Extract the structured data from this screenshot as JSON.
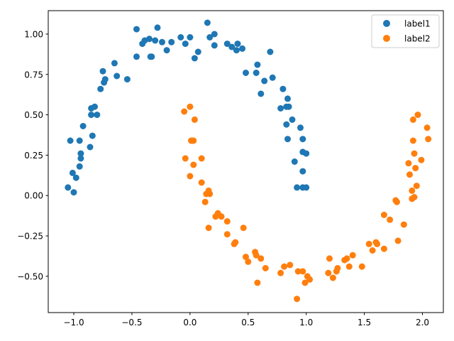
{
  "chart_data": {
    "type": "scatter",
    "title": "",
    "xlabel": "",
    "ylabel": "",
    "xlim": [
      -1.22,
      2.18
    ],
    "ylim": [
      -0.725,
      1.145
    ],
    "x_ticks": [
      "−1.0",
      "−0.5",
      "0.0",
      "0.5",
      "1.0",
      "1.5",
      "2.0"
    ],
    "x_tick_values": [
      -1.0,
      -0.5,
      0.0,
      0.5,
      1.0,
      1.5,
      2.0
    ],
    "y_ticks": [
      "−0.50",
      "−0.25",
      "0.00",
      "0.25",
      "0.50",
      "0.75",
      "1.00"
    ],
    "y_tick_values": [
      -0.5,
      -0.25,
      0.0,
      0.25,
      0.5,
      0.75,
      1.0
    ],
    "legend_position": "top-right",
    "grid": false,
    "series": [
      {
        "name": "label1",
        "color": "#1f77b4",
        "points": [
          [
            -1.05,
            0.05
          ],
          [
            -1.0,
            0.02
          ],
          [
            -1.01,
            0.14
          ],
          [
            -0.98,
            0.11
          ],
          [
            -0.95,
            0.18
          ],
          [
            -0.94,
            0.23
          ],
          [
            -0.94,
            0.26
          ],
          [
            -1.03,
            0.34
          ],
          [
            -0.95,
            0.34
          ],
          [
            -0.92,
            0.43
          ],
          [
            -0.86,
            0.3
          ],
          [
            -0.84,
            0.37
          ],
          [
            -0.85,
            0.5
          ],
          [
            -0.85,
            0.54
          ],
          [
            -0.82,
            0.55
          ],
          [
            -0.8,
            0.5
          ],
          [
            -0.77,
            0.66
          ],
          [
            -0.75,
            0.77
          ],
          [
            -0.74,
            0.7
          ],
          [
            -0.73,
            0.72
          ],
          [
            -0.63,
            0.74
          ],
          [
            -0.65,
            0.82
          ],
          [
            -0.54,
            0.72
          ],
          [
            -0.46,
            0.86
          ],
          [
            -0.46,
            1.03
          ],
          [
            -0.41,
            0.94
          ],
          [
            -0.39,
            0.96
          ],
          [
            -0.35,
            0.97
          ],
          [
            -0.34,
            0.86
          ],
          [
            -0.33,
            0.86
          ],
          [
            -0.3,
            0.96
          ],
          [
            -0.28,
            1.04
          ],
          [
            -0.24,
            0.95
          ],
          [
            -0.2,
            0.9
          ],
          [
            -0.16,
            0.95
          ],
          [
            -0.08,
            0.98
          ],
          [
            -0.04,
            0.94
          ],
          [
            0.0,
            0.98
          ],
          [
            0.04,
            0.85
          ],
          [
            0.07,
            0.89
          ],
          [
            0.15,
            1.07
          ],
          [
            0.17,
            0.98
          ],
          [
            0.21,
            1.0
          ],
          [
            0.21,
            0.93
          ],
          [
            0.32,
            0.94
          ],
          [
            0.36,
            0.92
          ],
          [
            0.4,
            0.9
          ],
          [
            0.41,
            0.94
          ],
          [
            0.45,
            0.91
          ],
          [
            0.48,
            0.76
          ],
          [
            0.57,
            0.76
          ],
          [
            0.58,
            0.81
          ],
          [
            0.61,
            0.63
          ],
          [
            0.64,
            0.71
          ],
          [
            0.69,
            0.89
          ],
          [
            0.71,
            0.73
          ],
          [
            0.78,
            0.54
          ],
          [
            0.8,
            0.66
          ],
          [
            0.83,
            0.55
          ],
          [
            0.83,
            0.44
          ],
          [
            0.84,
            0.6
          ],
          [
            0.84,
            0.35
          ],
          [
            0.85,
            0.55
          ],
          [
            0.88,
            0.47
          ],
          [
            0.9,
            0.21
          ],
          [
            0.92,
            0.05
          ],
          [
            0.95,
            0.42
          ],
          [
            0.97,
            0.35
          ],
          [
            0.97,
            0.27
          ],
          [
            0.97,
            0.05
          ],
          [
            0.97,
            0.15
          ],
          [
            1.0,
            0.26
          ],
          [
            1.0,
            0.05
          ]
        ]
      },
      {
        "name": "label2",
        "color": "#ff7f0e",
        "points": [
          [
            -0.05,
            0.52
          ],
          [
            0.0,
            0.55
          ],
          [
            0.04,
            0.47
          ],
          [
            0.01,
            0.34
          ],
          [
            0.02,
            0.34
          ],
          [
            0.03,
            0.34
          ],
          [
            -0.04,
            0.23
          ],
          [
            0.03,
            0.19
          ],
          [
            0.1,
            0.23
          ],
          [
            0.0,
            0.12
          ],
          [
            0.1,
            0.08
          ],
          [
            0.14,
            0.01
          ],
          [
            0.16,
            0.03
          ],
          [
            0.17,
            0.01
          ],
          [
            0.13,
            -0.04
          ],
          [
            0.16,
            -0.2
          ],
          [
            0.22,
            -0.13
          ],
          [
            0.24,
            -0.11
          ],
          [
            0.27,
            -0.13
          ],
          [
            0.32,
            -0.16
          ],
          [
            0.32,
            -0.24
          ],
          [
            0.38,
            -0.3
          ],
          [
            0.39,
            -0.29
          ],
          [
            0.46,
            -0.2
          ],
          [
            0.48,
            -0.38
          ],
          [
            0.5,
            -0.41
          ],
          [
            0.56,
            -0.35
          ],
          [
            0.57,
            -0.37
          ],
          [
            0.58,
            -0.54
          ],
          [
            0.61,
            -0.39
          ],
          [
            0.65,
            -0.45
          ],
          [
            0.78,
            -0.48
          ],
          [
            0.81,
            -0.44
          ],
          [
            0.86,
            -0.43
          ],
          [
            0.92,
            -0.64
          ],
          [
            0.93,
            -0.47
          ],
          [
            0.97,
            -0.47
          ],
          [
            0.99,
            -0.54
          ],
          [
            1.01,
            -0.5
          ],
          [
            1.03,
            -0.52
          ],
          [
            1.19,
            -0.48
          ],
          [
            1.2,
            -0.39
          ],
          [
            1.23,
            -0.51
          ],
          [
            1.26,
            -0.47
          ],
          [
            1.27,
            -0.45
          ],
          [
            1.33,
            -0.4
          ],
          [
            1.35,
            -0.39
          ],
          [
            1.37,
            -0.44
          ],
          [
            1.4,
            -0.37
          ],
          [
            1.48,
            -0.44
          ],
          [
            1.54,
            -0.3
          ],
          [
            1.57,
            -0.34
          ],
          [
            1.6,
            -0.29
          ],
          [
            1.61,
            -0.3
          ],
          [
            1.67,
            -0.12
          ],
          [
            1.67,
            -0.33
          ],
          [
            1.72,
            -0.15
          ],
          [
            1.77,
            -0.03
          ],
          [
            1.78,
            -0.04
          ],
          [
            1.79,
            -0.28
          ],
          [
            1.84,
            -0.18
          ],
          [
            1.88,
            0.2
          ],
          [
            1.89,
            0.13
          ],
          [
            1.91,
            0.03
          ],
          [
            1.91,
            -0.02
          ],
          [
            1.92,
            0.47
          ],
          [
            1.92,
            0.34
          ],
          [
            1.93,
            0.26
          ],
          [
            1.93,
            -0.01
          ],
          [
            1.94,
            0.17
          ],
          [
            1.95,
            0.06
          ],
          [
            1.96,
            0.5
          ],
          [
            1.99,
            0.22
          ],
          [
            2.04,
            0.42
          ],
          [
            2.05,
            0.35
          ]
        ]
      }
    ]
  }
}
